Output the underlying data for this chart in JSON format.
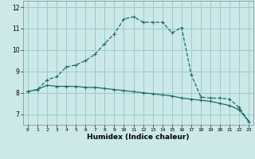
{
  "xlabel": "Humidex (Indice chaleur)",
  "bg_color": "#cce8e8",
  "grid_color": "#99cccc",
  "line_color": "#1a6b6b",
  "x_values": [
    0,
    1,
    2,
    3,
    4,
    5,
    6,
    7,
    8,
    9,
    10,
    11,
    12,
    13,
    14,
    15,
    16,
    17,
    18,
    19,
    20,
    21,
    22,
    23
  ],
  "y_curve": [
    8.05,
    8.15,
    8.6,
    8.75,
    9.2,
    9.3,
    9.5,
    9.8,
    10.3,
    10.75,
    11.45,
    11.55,
    11.3,
    11.3,
    11.3,
    10.8,
    11.05,
    8.85,
    7.8,
    7.75,
    7.75,
    7.7,
    7.3,
    6.65
  ],
  "y_line": [
    8.05,
    8.15,
    8.35,
    8.3,
    8.3,
    8.3,
    8.25,
    8.25,
    8.2,
    8.15,
    8.1,
    8.05,
    8.0,
    7.95,
    7.9,
    7.85,
    7.75,
    7.7,
    7.65,
    7.6,
    7.5,
    7.4,
    7.2,
    6.65
  ],
  "ylim": [
    6.5,
    12.3
  ],
  "yticks": [
    7,
    8,
    9,
    10,
    11,
    12
  ],
  "xlim": [
    -0.5,
    23.5
  ],
  "xticks": [
    0,
    1,
    2,
    3,
    4,
    5,
    6,
    7,
    8,
    9,
    10,
    11,
    12,
    13,
    14,
    15,
    16,
    17,
    18,
    19,
    20,
    21,
    22,
    23
  ]
}
